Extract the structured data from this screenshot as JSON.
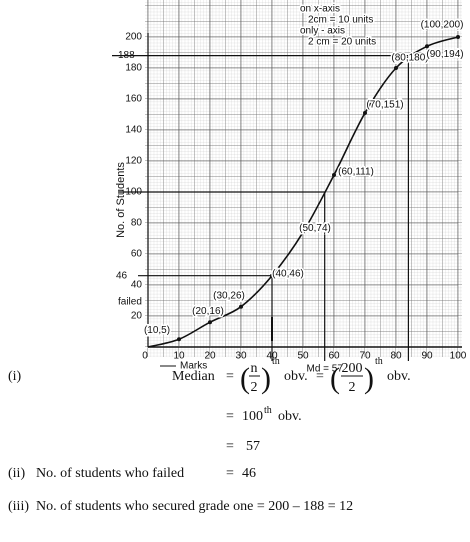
{
  "chart_data": {
    "type": "line",
    "y_axis_label": "No. of Students",
    "x_axis_label": "Marks",
    "median_label": "Md = 57",
    "failed_label": "failed",
    "annotations": [
      "on x-axis",
      "2cm = 10 units",
      "only - axis",
      "2 cm = 20 units"
    ],
    "x": [
      10,
      20,
      30,
      40,
      50,
      60,
      70,
      80,
      90,
      100
    ],
    "series": [
      {
        "color": "#111111",
        "values": [
          5,
          16,
          26,
          46,
          74,
          111,
          151,
          180,
          194,
          200
        ],
        "value_labels": [
          "(10,5)",
          "(20,16)",
          "(30,26)",
          "(40,46)",
          "(50,74)",
          "(60,111)",
          "(70,151)",
          "(80,180)",
          "(90,194)",
          "(100,200)"
        ]
      }
    ],
    "xlim": [
      0,
      100
    ],
    "xticks": [
      0,
      10,
      20,
      30,
      40,
      50,
      60,
      70,
      80,
      90,
      100
    ],
    "ylim": [
      0,
      200
    ],
    "yticks": [
      20,
      40,
      60,
      80,
      100,
      120,
      140,
      160,
      180,
      200
    ],
    "marked_levels": [
      46,
      188
    ],
    "reference_lines": [
      {
        "x": 57,
        "y": 100
      },
      {
        "x": 40,
        "y": 46
      },
      {
        "x": 84,
        "y": 188
      }
    ],
    "grid": true
  },
  "solution": {
    "equals": "=",
    "i_label": "(i)",
    "median_word": "Median",
    "n": "n",
    "two": "2",
    "th": "th",
    "obv": "obv.",
    "n_value": "200",
    "hundred": "100",
    "median_value": "57",
    "ii_label": "(ii)",
    "ii_text": "No. of students who failed",
    "ii_value": "46",
    "iii_label": "(iii)",
    "iii_text": "No. of students who secured grade one = 200 – 188 = 12"
  }
}
